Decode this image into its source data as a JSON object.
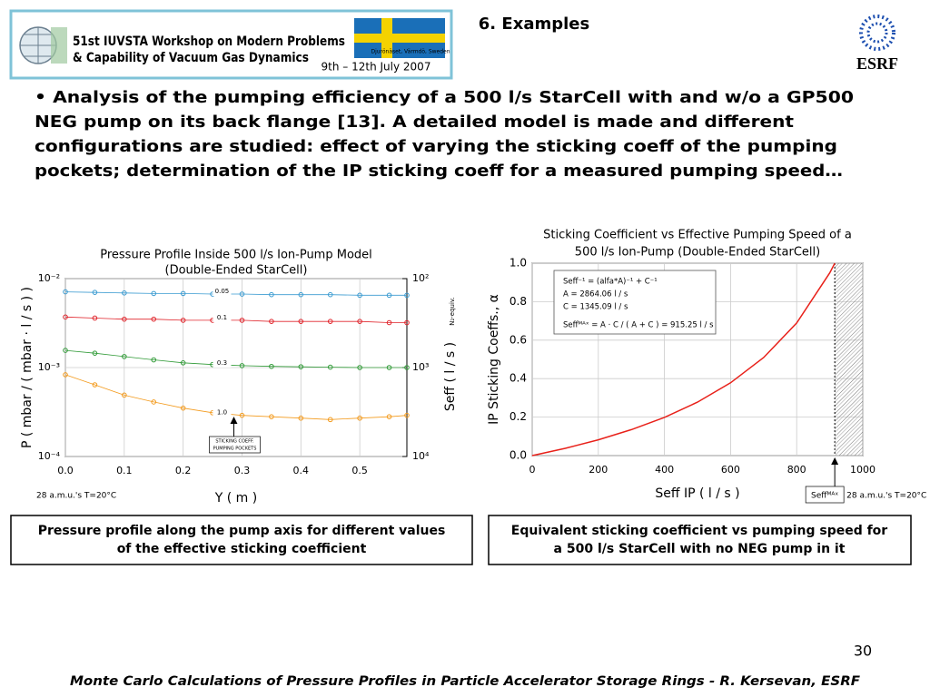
{
  "header": {
    "workshop_lines": [
      "51st IUVSTA Workshop on Modern Problems",
      "& Capability of Vacuum Gas Dynamics"
    ],
    "dates": "9th – 12th  July 2007",
    "venue": "Djurönäset, Värmdö, Sweden",
    "section_title": "6. Examples",
    "logo": "ESRF"
  },
  "bullet": {
    "lines": [
      "• Analysis of the pumping efficiency of a 500 l/s StarCell with and w/o a GP500",
      "NEG pump on its back flange [13]. A detailed model is made and different",
      "configurations are studied: effect of varying the sticking coeff of the pumping",
      "pockets; determination of the IP sticking coeff for a measured pumping speed…"
    ]
  },
  "chart_data": [
    {
      "type": "line",
      "title": "Pressure Profile Inside 500 l/s Ion-Pump Model",
      "subtitle": "(Double-Ended StarCell)",
      "xlabel": "Y ( m )",
      "ylabel": "P ( mbar / ( mbar · l / s ) )",
      "y2label": "Seff ( l / s )",
      "y2label_note": "N₂-equiv.",
      "log_y": true,
      "grid": true,
      "marker": "circle",
      "x": [
        0,
        0.05,
        0.1,
        0.15,
        0.2,
        0.25,
        0.3,
        0.35,
        0.4,
        0.45,
        0.5,
        0.55,
        0.58
      ],
      "xlim": [
        0,
        0.58
      ],
      "xticks": [
        {
          "value": 0,
          "label": "0.0"
        },
        0.1,
        0.2,
        0.3,
        0.4,
        0.5
      ],
      "ylim": [
        0.0001,
        0.01
      ],
      "yticks": [
        {
          "value": 0.01,
          "label": "10⁻²"
        },
        {
          "value": 0.001,
          "label": "10⁻³"
        },
        {
          "value": 0.0001,
          "label": "10⁻⁴"
        }
      ],
      "y2lim": [
        10000,
        100
      ],
      "y2ticks": [
        {
          "value": 100,
          "label": "10²"
        },
        {
          "value": 1000,
          "label": "10³"
        },
        {
          "value": 10000,
          "label": "10⁴"
        }
      ],
      "series": [
        {
          "name": "0.05",
          "color": "#3a9bd1",
          "values": [
            0.0071,
            0.007,
            0.0069,
            0.0068,
            0.0068,
            0.0067,
            0.0067,
            0.0066,
            0.0066,
            0.0066,
            0.0065,
            0.0065,
            0.0065
          ]
        },
        {
          "name": "0.1",
          "color": "#e0232a",
          "values": [
            0.0037,
            0.0036,
            0.0035,
            0.0035,
            0.0034,
            0.0034,
            0.0034,
            0.0033,
            0.0033,
            0.0033,
            0.0033,
            0.0032,
            0.0032
          ]
        },
        {
          "name": "0.3",
          "color": "#2f9a36",
          "values": [
            0.00156,
            0.00145,
            0.00133,
            0.00122,
            0.00113,
            0.00108,
            0.00105,
            0.00103,
            0.00102,
            0.00101,
            0.001,
            0.001,
            0.001
          ]
        },
        {
          "name": "1.0",
          "color": "#f39a1c",
          "values": [
            0.00083,
            0.00064,
            0.00049,
            0.00041,
            0.00035,
            0.00031,
            0.00029,
            0.00028,
            0.00027,
            0.00026,
            0.00027,
            0.00028,
            0.00029
          ]
        }
      ],
      "annotation": [
        "STICKING COEFF.",
        "PUMPING POCKETS"
      ],
      "note": "28 a.m.u.'s T=20°C"
    },
    {
      "type": "line",
      "title": "Sticking Coefficient vs Effective Pumping Speed of a",
      "subtitle": "500 l/s Ion-Pump (Double-Ended StarCell)",
      "xlabel": "Seff IP ( l / s )",
      "ylabel": "IP Sticking Coeffs., α",
      "log_y": false,
      "grid": true,
      "marker": "none",
      "x": [
        0,
        100,
        200,
        300,
        400,
        500,
        600,
        700,
        800,
        900,
        915.25
      ],
      "xlim": [
        0,
        1000
      ],
      "xticks": [
        0,
        200,
        400,
        600,
        800,
        1000
      ],
      "ylim": [
        0,
        1
      ],
      "yticks": [
        {
          "value": 0,
          "label": "0.0"
        },
        0.2,
        0.4,
        0.6,
        0.8,
        {
          "value": 1,
          "label": "1.0"
        }
      ],
      "series": [
        {
          "color": "#e8211a",
          "values": [
            0,
            0.0377,
            0.082,
            0.1348,
            0.1988,
            0.2779,
            0.3782,
            0.5096,
            0.6892,
            0.9496,
            1
          ]
        }
      ],
      "formula": [
        "Seff⁻¹ = (alfa*A)⁻¹ + C⁻¹",
        "A = 2864.06 l / s",
        "C = 1345.09 l / s",
        "Seffᴹᴬˣ = A · C / ( A + C ) =  915.25 l / s"
      ],
      "annotation": [
        "Seffᴹᴬˣ"
      ],
      "note": "28 a.m.u.'s T=20°C"
    }
  ],
  "captions": [
    [
      "Pressure profile along the pump axis for different values",
      "of the effective sticking coefficient"
    ],
    [
      "Equivalent sticking coefficient vs pumping speed for",
      "a 500 l/s StarCell with no NEG pump in it"
    ]
  ],
  "page_number": "30",
  "footer": "Monte Carlo Calculations of Pressure Profiles in Particle Accelerator Storage Rings - R. Kersevan, ESRF"
}
